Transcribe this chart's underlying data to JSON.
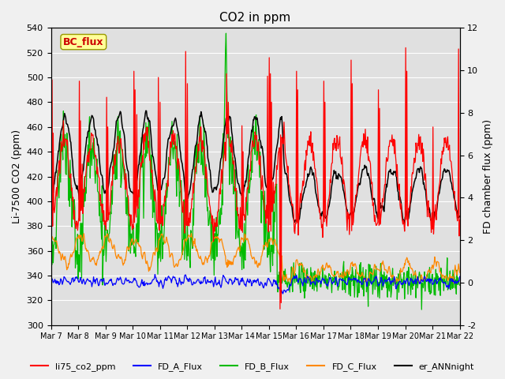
{
  "title": "CO2 in ppm",
  "ylabel_left": "Li-7500 CO2 (ppm)",
  "ylabel_right": "FD chamber flux (ppm)",
  "ylim_left": [
    300,
    540
  ],
  "ylim_right": [
    -2,
    12
  ],
  "yticks_left": [
    300,
    320,
    340,
    360,
    380,
    400,
    420,
    440,
    460,
    480,
    500,
    520,
    540
  ],
  "yticks_right": [
    -2,
    0,
    2,
    4,
    6,
    8,
    10,
    12
  ],
  "xlim": [
    0,
    15
  ],
  "xtick_labels": [
    "Mar 7",
    "Mar 8",
    "Mar 9",
    "Mar 10",
    "Mar 11",
    "Mar 12",
    "Mar 13",
    "Mar 14",
    "Mar 15",
    "Mar 16",
    "Mar 17",
    "Mar 18",
    "Mar 19",
    "Mar 20",
    "Mar 21",
    "Mar 22"
  ],
  "bc_flux_label": "BC_flux",
  "bc_flux_color": "#cc0000",
  "bc_flux_bg": "#ffff99",
  "colors": {
    "li75": "#ff0000",
    "fd_a": "#0000ff",
    "fd_b": "#00bb00",
    "fd_c": "#ff8800",
    "er_ann": "#000000"
  },
  "legend_labels": [
    "li75_co2_ppm",
    "FD_A_Flux",
    "FD_B_Flux",
    "FD_C_Flux",
    "er_ANNnight"
  ],
  "fig_bg": "#f0f0f0",
  "ax_bg": "#e0e0e0",
  "grid_color": "#ffffff",
  "title_fontsize": 11,
  "axis_fontsize": 9,
  "tick_fontsize": 8,
  "linewidth": 0.9
}
